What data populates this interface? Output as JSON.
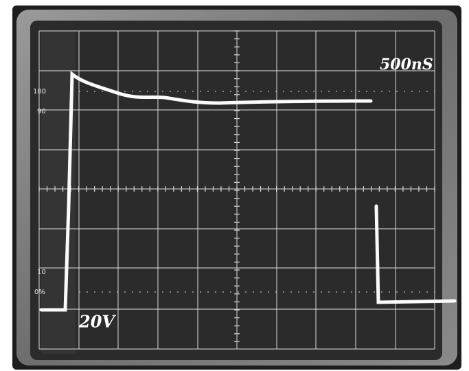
{
  "graticule_labels": [
    "100",
    "90",
    "10",
    "0%"
  ],
  "annotations": {
    "time_per_div": "500nS",
    "volts_per_div": "20V"
  }
}
